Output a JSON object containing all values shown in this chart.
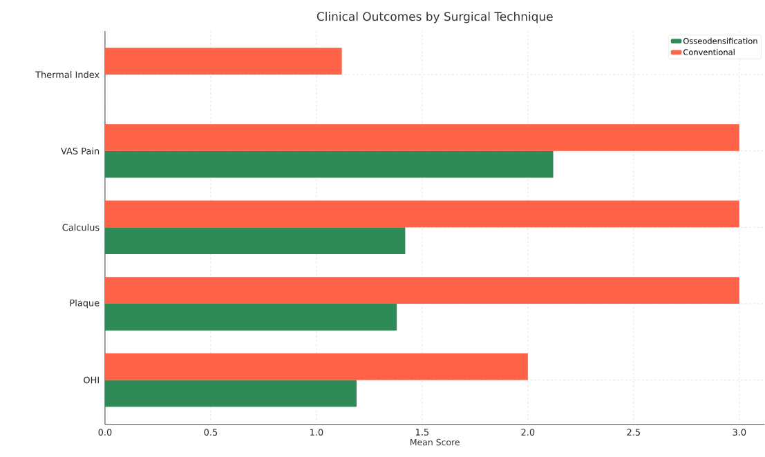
{
  "chart_data": {
    "type": "bar",
    "orientation": "horizontal",
    "title": "Clinical Outcomes by Surgical Technique",
    "xlabel": "Mean Score",
    "categories": [
      "Thermal Index",
      "VAS Pain",
      "Calculus",
      "Plaque",
      "OHI"
    ],
    "series": [
      {
        "name": "Osseodensification",
        "color": "#2e8b57",
        "values": [
          null,
          2.12,
          1.42,
          1.38,
          1.19
        ]
      },
      {
        "name": "Conventional",
        "color": "#ff6347",
        "values": [
          1.12,
          3.0,
          3.0,
          3.0,
          2.0
        ]
      }
    ],
    "xlim": [
      0,
      3.12
    ],
    "xticks": [
      {
        "value": 0,
        "label": "0.0"
      },
      0.5,
      {
        "value": 1,
        "label": "1.0"
      },
      1.5,
      {
        "value": 2,
        "label": "2.0"
      },
      2.5,
      {
        "value": 3,
        "label": "3.0"
      }
    ],
    "grid": true,
    "legend": "top right"
  }
}
